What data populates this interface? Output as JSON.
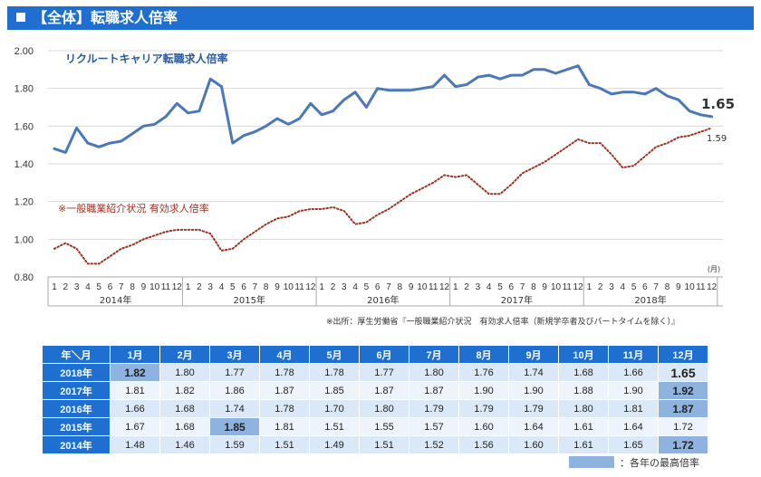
{
  "header": {
    "title": "【全体】転職求人倍率"
  },
  "chart_data": {
    "type": "line",
    "ylim": [
      0.8,
      2.0
    ],
    "yticks": [
      "0.80",
      "1.00",
      "1.20",
      "1.40",
      "1.60",
      "1.80",
      "2.00"
    ],
    "month_labels": [
      "1",
      "2",
      "3",
      "4",
      "5",
      "6",
      "7",
      "8",
      "9",
      "10",
      "11",
      "12"
    ],
    "years": [
      "2014年",
      "2015年",
      "2016年",
      "2017年",
      "2018年"
    ],
    "unit_label": "(月)",
    "series": [
      {
        "name": "リクルートキャリア転職求人倍率",
        "color": "#4a78b8",
        "style": "solid",
        "values": [
          1.48,
          1.46,
          1.59,
          1.51,
          1.49,
          1.51,
          1.52,
          1.56,
          1.6,
          1.61,
          1.65,
          1.72,
          1.67,
          1.68,
          1.85,
          1.81,
          1.51,
          1.55,
          1.57,
          1.6,
          1.64,
          1.61,
          1.64,
          1.72,
          1.66,
          1.68,
          1.74,
          1.78,
          1.7,
          1.8,
          1.79,
          1.79,
          1.79,
          1.8,
          1.81,
          1.87,
          1.81,
          1.82,
          1.86,
          1.87,
          1.85,
          1.87,
          1.87,
          1.9,
          1.9,
          1.88,
          1.9,
          1.92,
          1.82,
          1.8,
          1.77,
          1.78,
          1.78,
          1.77,
          1.8,
          1.76,
          1.74,
          1.68,
          1.66,
          1.65
        ]
      },
      {
        "name": "※一般職業紹介状況 有効求人倍率",
        "color": "#a03020",
        "style": "dotted",
        "values": [
          0.95,
          0.98,
          0.95,
          0.87,
          0.87,
          0.91,
          0.95,
          0.97,
          1.0,
          1.02,
          1.04,
          1.05,
          1.05,
          1.05,
          1.03,
          0.94,
          0.95,
          1.0,
          1.04,
          1.08,
          1.11,
          1.12,
          1.15,
          1.16,
          1.16,
          1.17,
          1.15,
          1.08,
          1.09,
          1.13,
          1.16,
          1.2,
          1.24,
          1.27,
          1.3,
          1.34,
          1.33,
          1.34,
          1.29,
          1.24,
          1.24,
          1.29,
          1.35,
          1.38,
          1.41,
          1.45,
          1.49,
          1.53,
          1.51,
          1.51,
          1.45,
          1.38,
          1.39,
          1.44,
          1.49,
          1.51,
          1.54,
          1.55,
          1.57,
          1.59
        ]
      }
    ],
    "end_labels": {
      "main": "1.65",
      "sub": "1.59"
    }
  },
  "source_note": "※出所：厚生労働省『一般職業紹介状況　有効求人倍率（新規学卒者及びパートタイムを除く）』",
  "table": {
    "corner": "年＼月",
    "months": [
      "1月",
      "2月",
      "3月",
      "4月",
      "5月",
      "6月",
      "7月",
      "8月",
      "9月",
      "10月",
      "11月",
      "12月"
    ],
    "rows": [
      {
        "year": "2018年",
        "values": [
          "1.82",
          "1.80",
          "1.77",
          "1.78",
          "1.78",
          "1.77",
          "1.80",
          "1.76",
          "1.74",
          "1.68",
          "1.66",
          "1.65"
        ],
        "max_col": 0
      },
      {
        "year": "2017年",
        "values": [
          "1.81",
          "1.82",
          "1.86",
          "1.87",
          "1.85",
          "1.87",
          "1.87",
          "1.90",
          "1.90",
          "1.88",
          "1.90",
          "1.92"
        ],
        "max_col": 11
      },
      {
        "year": "2016年",
        "values": [
          "1.66",
          "1.68",
          "1.74",
          "1.78",
          "1.70",
          "1.80",
          "1.79",
          "1.79",
          "1.79",
          "1.80",
          "1.81",
          "1.87"
        ],
        "max_col": 11
      },
      {
        "year": "2015年",
        "values": [
          "1.67",
          "1.68",
          "1.85",
          "1.81",
          "1.51",
          "1.55",
          "1.57",
          "1.60",
          "1.64",
          "1.61",
          "1.64",
          "1.72"
        ],
        "max_col": 2
      },
      {
        "year": "2014年",
        "values": [
          "1.48",
          "1.46",
          "1.59",
          "1.51",
          "1.49",
          "1.51",
          "1.52",
          "1.56",
          "1.60",
          "1.61",
          "1.65",
          "1.72"
        ],
        "max_col": 11
      }
    ]
  },
  "legend": {
    "label": "：各年の最高倍率",
    "color": "#8fb3df"
  }
}
